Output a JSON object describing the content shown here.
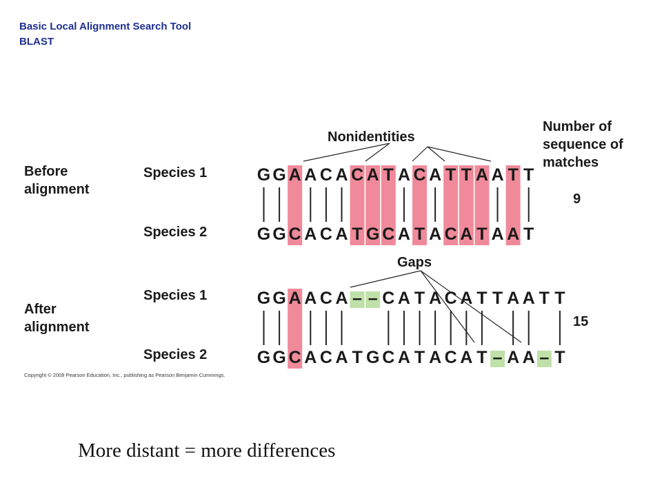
{
  "header": {
    "line1": "Basic Local Alignment Search Tool",
    "line2": "BLAST"
  },
  "labels": {
    "before": [
      "Before",
      "alignment"
    ],
    "after": [
      "After",
      "alignment"
    ],
    "species1": "Species 1",
    "species2": "Species 2",
    "nonidentities": "Nonidentities",
    "gaps": "Gaps",
    "matches_header": [
      "Number of",
      "sequence of",
      "matches"
    ]
  },
  "before": {
    "seq1": "GGAACACATACATTAATT",
    "seq2": "GGCACATGCATACATAAT",
    "matches": "9"
  },
  "after": {
    "seq1": "GGAACA--CATACATTAATT",
    "seq2": "GGCACATGCATACAT-AA-T",
    "matches": "15"
  },
  "copyright": "Copyright © 2009 Pearson Education, Inc., publishing as Pearson Benjamin Cummings.",
  "tagline": "More distant = more differences",
  "colors": {
    "mismatch": "#f08a9a",
    "gap": "#bfe0a8",
    "header": "#1f2f8f",
    "text": "#1a1a1a"
  }
}
